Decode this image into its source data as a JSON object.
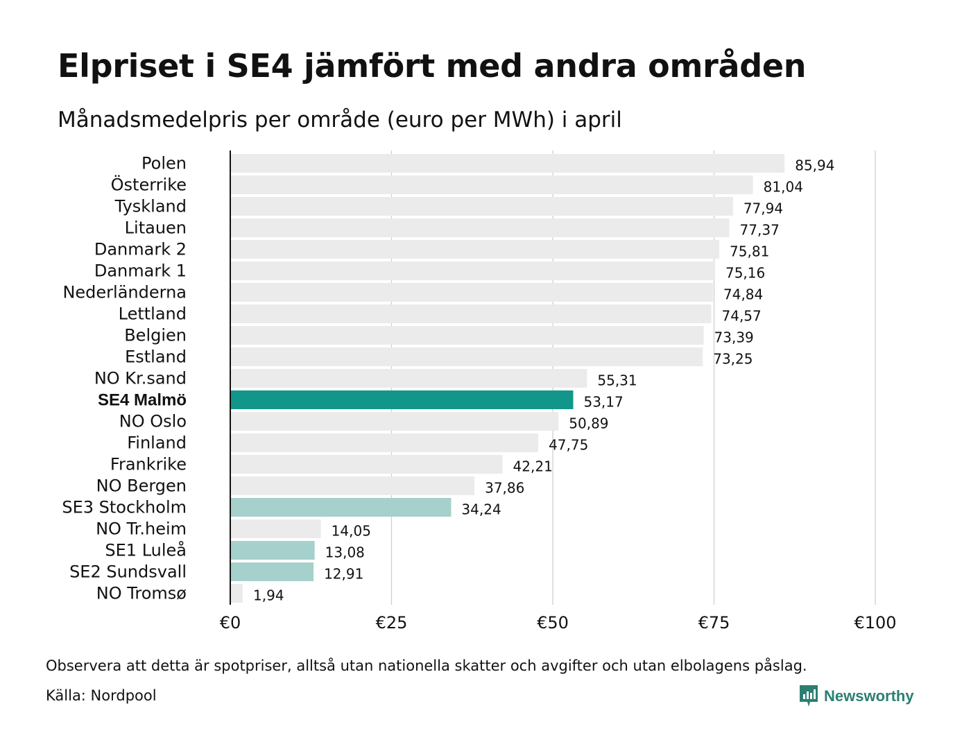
{
  "header": {
    "title": "Elpriset i SE4 jämfört med andra områden",
    "subtitle": "Månadsmedelpris per område (euro per MWh) i april"
  },
  "footer": {
    "note": "Observera att detta är spotpriser, alltså utan nationella skatter och avgifter och utan elbolagens påslag.",
    "source": "Källa: Nordpool",
    "brand": "Newsworthy",
    "brand_icon": "newsworthy-logo-icon"
  },
  "colors": {
    "default_bar": "#ebebeb",
    "highlight_bar": "#13968a",
    "swedish_bar": "#a6d0cb",
    "gridline": "#cccccc",
    "axis": "#111111",
    "brand": "#2a7f72"
  },
  "chart_data": {
    "type": "bar",
    "orientation": "horizontal",
    "categories": [
      "Polen",
      "Österrike",
      "Tyskland",
      "Litauen",
      "Danmark 2",
      "Danmark 1",
      "Nederländerna",
      "Lettland",
      "Belgien",
      "Estland",
      "NO Kr.sand",
      "SE4 Malmö",
      "NO Oslo",
      "Finland",
      "Frankrike",
      "NO Bergen",
      "SE3 Stockholm",
      "NO Tr.heim",
      "SE1 Luleå",
      "SE2 Sundsvall",
      "NO Tromsø"
    ],
    "values": [
      85.94,
      81.04,
      77.94,
      77.37,
      75.81,
      75.16,
      74.84,
      74.57,
      73.39,
      73.25,
      55.31,
      53.17,
      50.89,
      47.75,
      42.21,
      37.86,
      34.24,
      14.05,
      13.08,
      12.91,
      1.94
    ],
    "value_labels": [
      "85,94",
      "81,04",
      "77,94",
      "77,37",
      "75,81",
      "75,16",
      "74,84",
      "74,57",
      "73,39",
      "73,25",
      "55,31",
      "53,17",
      "50,89",
      "47,75",
      "42,21",
      "37,86",
      "34,24",
      "14,05",
      "13,08",
      "12,91",
      "1,94"
    ],
    "bar_group": [
      "default",
      "default",
      "default",
      "default",
      "default",
      "default",
      "default",
      "default",
      "default",
      "default",
      "default",
      "highlight",
      "default",
      "default",
      "default",
      "default",
      "swedish",
      "default",
      "swedish",
      "swedish",
      "default"
    ],
    "xlim": [
      0,
      100
    ],
    "xticks": [
      0,
      25,
      50,
      75,
      100
    ],
    "xtick_labels": [
      "€0",
      "€25",
      "€50",
      "€75",
      "€100"
    ],
    "grid": true,
    "xlabel": "",
    "ylabel": "",
    "legend": "none"
  }
}
